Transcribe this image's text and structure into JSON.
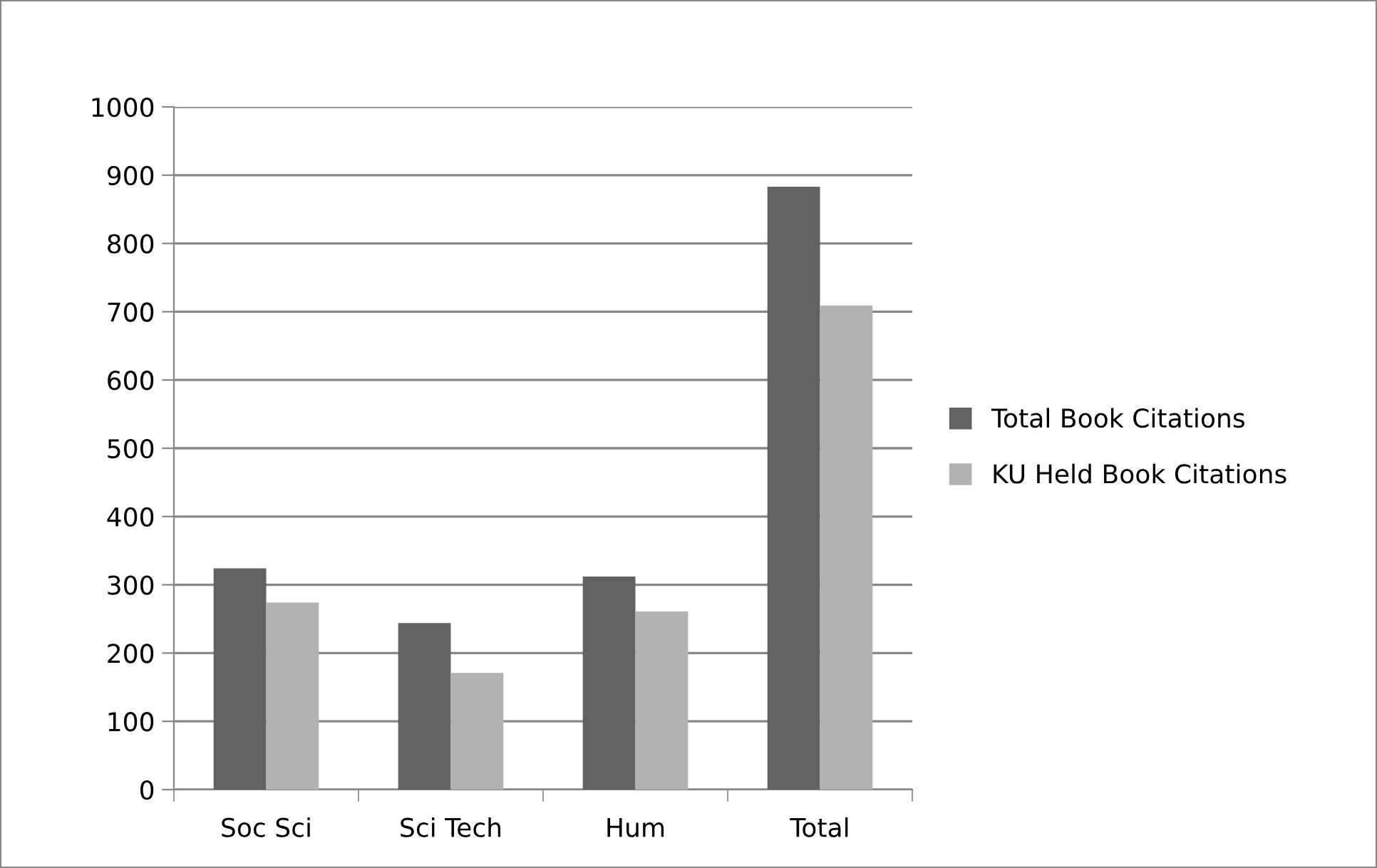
{
  "chart_data": {
    "type": "bar",
    "categories": [
      "Soc Sci",
      "Sci Tech",
      "Hum",
      "Total"
    ],
    "series": [
      {
        "name": "Total Book Citations",
        "color": "#626262",
        "values": [
          324,
          244,
          312,
          883
        ]
      },
      {
        "name": "KU Held Book Citations",
        "color": "#b2b2b2",
        "values": [
          274,
          171,
          261,
          709
        ]
      }
    ],
    "ylim": [
      0,
      1000
    ],
    "yticks": [
      0,
      100,
      200,
      300,
      400,
      500,
      600,
      700,
      800,
      900,
      1000
    ],
    "grid": "y",
    "legend": "right"
  }
}
